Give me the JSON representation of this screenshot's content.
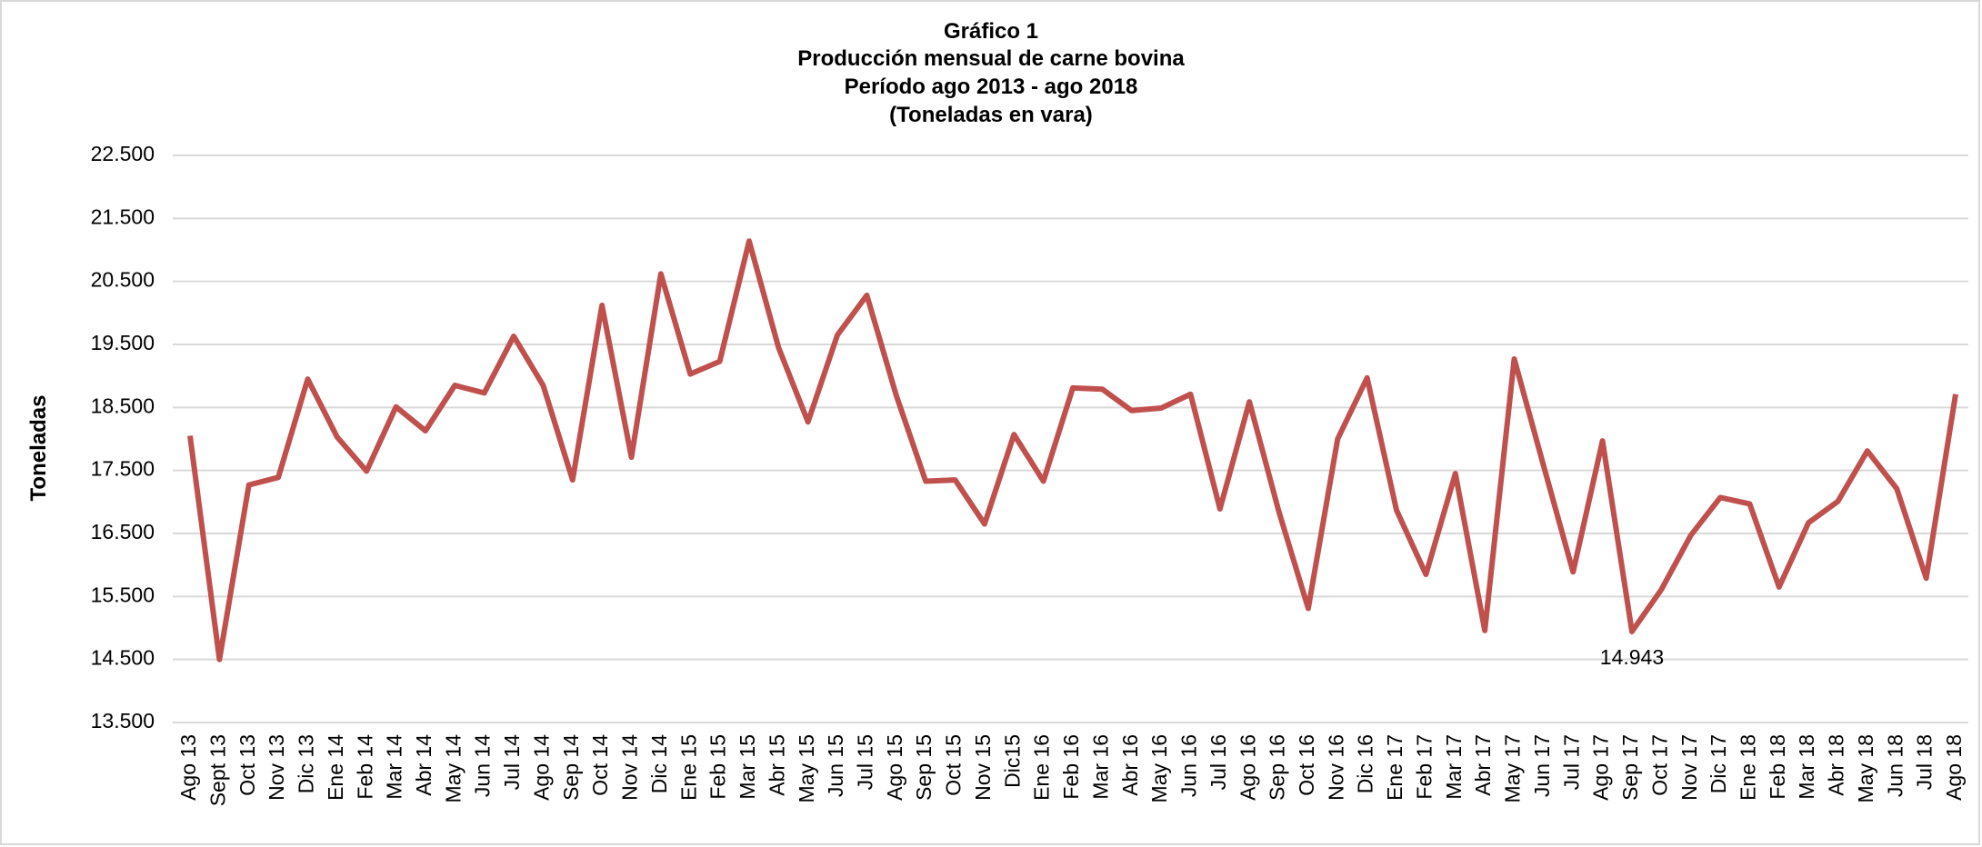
{
  "chart_data": {
    "type": "line",
    "title": "Gráfico 1",
    "subtitle": "Producción mensual de carne bovina",
    "period": "Período ago 2013 -  ago 2018",
    "units": "(Toneladas en vara)",
    "y_label": "Toneladas",
    "categories": [
      "Ago 13",
      "Sept 13",
      "Oct 13",
      "Nov 13",
      "Dic 13",
      "Ene 14",
      "Feb 14",
      "Mar 14",
      "Abr 14",
      "May 14",
      "Jun 14",
      "Jul 14",
      "Ago 14",
      "Sep 14",
      "Oct 14",
      "Nov 14",
      "Dic 14",
      "Ene 15",
      "Feb 15",
      "Mar 15",
      "Abr 15",
      "May 15",
      "Jun 15",
      "Jul 15",
      "Ago 15",
      "Sep 15",
      "Oct 15",
      "Nov 15",
      "Dic15",
      "Ene 16",
      "Feb 16",
      "Mar 16",
      "Abr 16",
      "May 16",
      "Jun 16",
      "Jul 16",
      "Ago 16",
      "Sep 16",
      "Oct 16",
      "Nov 16",
      "Dic 16",
      "Ene 17",
      "Feb 17",
      "Mar 17",
      "Abr 17",
      "May 17",
      "Jun 17",
      "Jul 17",
      "Ago 17",
      "Sep 17",
      "Oct 17",
      "Nov 17",
      "Dic 17",
      "Ene 18",
      "Feb 18",
      "Mar 18",
      "Abr 18",
      "May 18",
      "Jun 18",
      "Jul 18",
      "Ago 18"
    ],
    "values": [
      18050,
      14500,
      17270,
      17390,
      18950,
      18030,
      17490,
      18510,
      18130,
      18850,
      18730,
      19630,
      18850,
      17350,
      20120,
      17710,
      20620,
      19030,
      19230,
      21140,
      19450,
      18270,
      19650,
      20280,
      18690,
      17330,
      17350,
      16650,
      18070,
      17330,
      18810,
      18790,
      18450,
      18490,
      18710,
      16890,
      18590,
      16850,
      15310,
      18000,
      18970,
      16870,
      15850,
      17450,
      14960,
      19270,
      17570,
      15890,
      17970,
      14943,
      15610,
      16470,
      17070,
      16970,
      15650,
      16670,
      17010,
      17810,
      17210,
      15790,
      18710
    ],
    "value_labels": [
      null,
      null,
      null,
      null,
      null,
      null,
      null,
      null,
      null,
      null,
      null,
      null,
      null,
      null,
      null,
      null,
      null,
      null,
      null,
      null,
      null,
      null,
      null,
      null,
      null,
      null,
      null,
      null,
      null,
      null,
      null,
      null,
      null,
      null,
      null,
      null,
      null,
      null,
      null,
      null,
      null,
      null,
      null,
      null,
      null,
      null,
      null,
      null,
      null,
      "14.943",
      null,
      null,
      null,
      null,
      null,
      null,
      null,
      null,
      null,
      null,
      null
    ],
    "color": "#c0504d",
    "ylim": [
      13500,
      22500
    ],
    "yticks": [
      {
        "value": 13500,
        "label": "13.500"
      },
      {
        "value": 14500,
        "label": "14.500"
      },
      {
        "value": 15500,
        "label": "15.500"
      },
      {
        "value": 16500,
        "label": "16.500"
      },
      {
        "value": 17500,
        "label": "17.500"
      },
      {
        "value": 18500,
        "label": "18.500"
      },
      {
        "value": 19500,
        "label": "19.500"
      },
      {
        "value": 20500,
        "label": "20.500"
      },
      {
        "value": 21500,
        "label": "21.500"
      },
      {
        "value": 22500,
        "label": "22.500"
      }
    ],
    "grid": true
  }
}
